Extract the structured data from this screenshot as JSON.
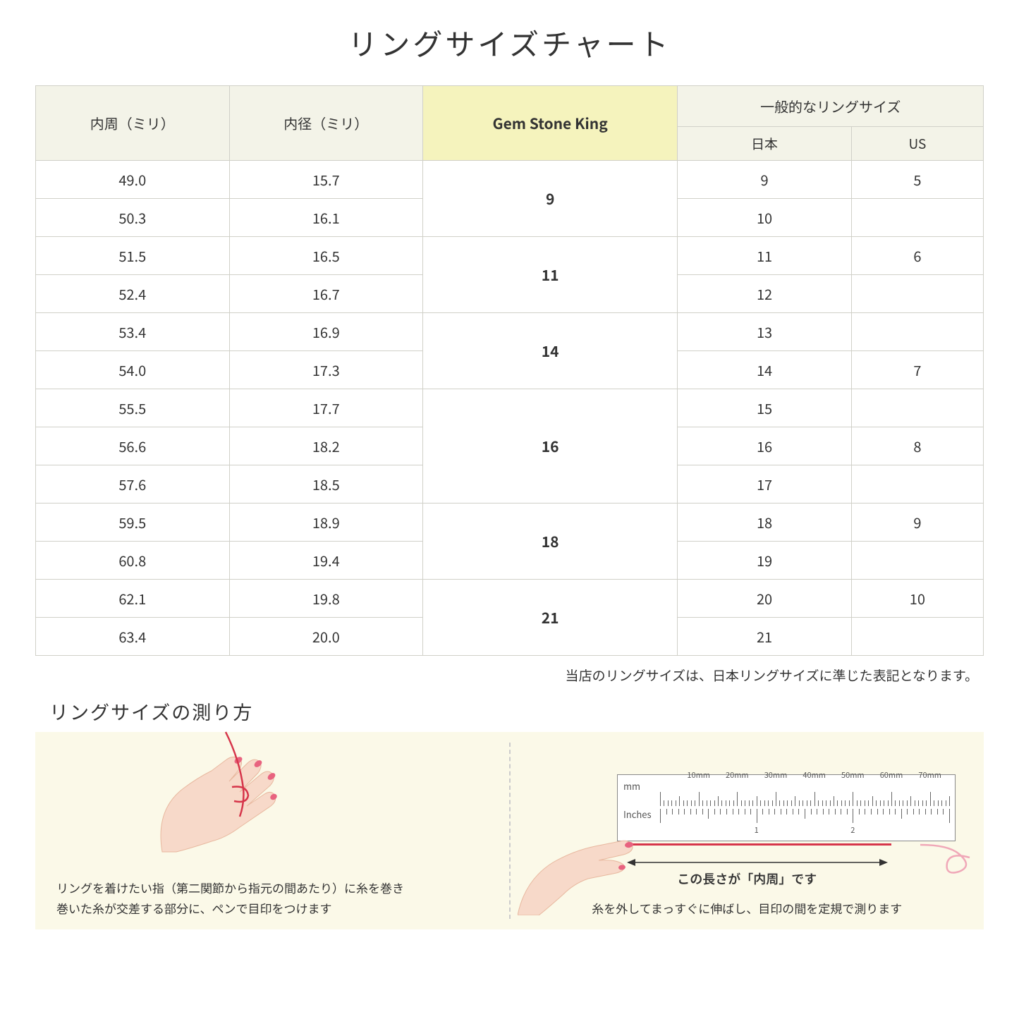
{
  "title": "リングサイズチャート",
  "headers": {
    "circumference": "内周（ミリ）",
    "diameter": "内径（ミリ）",
    "gsk": "Gem Stone King",
    "general": "一般的なリングサイズ",
    "japan": "日本",
    "us": "US"
  },
  "groups": [
    {
      "gsk": "9",
      "rows": [
        {
          "c": "49.0",
          "d": "15.7",
          "jp": "9",
          "us": "5"
        },
        {
          "c": "50.3",
          "d": "16.1",
          "jp": "10",
          "us": ""
        }
      ]
    },
    {
      "gsk": "11",
      "rows": [
        {
          "c": "51.5",
          "d": "16.5",
          "jp": "11",
          "us": "6"
        },
        {
          "c": "52.4",
          "d": "16.7",
          "jp": "12",
          "us": ""
        }
      ]
    },
    {
      "gsk": "14",
      "rows": [
        {
          "c": "53.4",
          "d": "16.9",
          "jp": "13",
          "us": ""
        },
        {
          "c": "54.0",
          "d": "17.3",
          "jp": "14",
          "us": "7"
        }
      ]
    },
    {
      "gsk": "16",
      "rows": [
        {
          "c": "55.5",
          "d": "17.7",
          "jp": "15",
          "us": ""
        },
        {
          "c": "56.6",
          "d": "18.2",
          "jp": "16",
          "us": "8"
        },
        {
          "c": "57.6",
          "d": "18.5",
          "jp": "17",
          "us": ""
        }
      ]
    },
    {
      "gsk": "18",
      "rows": [
        {
          "c": "59.5",
          "d": "18.9",
          "jp": "18",
          "us": "9"
        },
        {
          "c": "60.8",
          "d": "19.4",
          "jp": "19",
          "us": ""
        }
      ]
    },
    {
      "gsk": "21",
      "rows": [
        {
          "c": "62.1",
          "d": "19.8",
          "jp": "20",
          "us": "10"
        },
        {
          "c": "63.4",
          "d": "20.0",
          "jp": "21",
          "us": ""
        }
      ]
    }
  ],
  "note": "当店のリングサイズは、日本リングサイズに準じた表記となります。",
  "howto": {
    "title": "リングサイズの測り方",
    "left_text": "リングを着けたい指（第二関節から指元の間あたり）に糸を巻き\n巻いた糸が交差する部分に、ペンで目印をつけます",
    "right_text": "糸を外してまっすぐに伸ばし、目印の間を定規で測ります",
    "arrow_label": "この長さが「内周」です",
    "ruler": {
      "mm_label": "mm",
      "in_label": "Inches",
      "mm_marks": [
        "10mm",
        "20mm",
        "30mm",
        "40mm",
        "50mm",
        "60mm",
        "70mm"
      ],
      "in_marks": [
        "1",
        "2"
      ]
    }
  },
  "colors": {
    "header_bg": "#f3f3e8",
    "highlight_bg": "#f5f3bd",
    "border": "#d0d0c8",
    "howto_bg": "#fbf9e8",
    "skin": "#f7d9c9",
    "nail": "#e8637f",
    "thread": "#d6354a"
  }
}
